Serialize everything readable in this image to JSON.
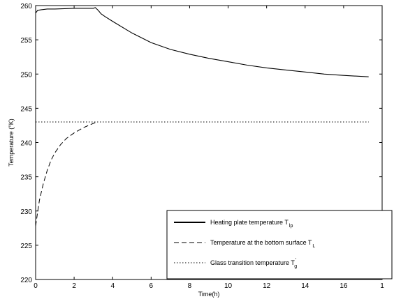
{
  "chart_data": {
    "type": "line",
    "title": "",
    "xlabel": "Time(h)",
    "ylabel": "Temperature (°K)",
    "xlim": [
      0,
      18
    ],
    "ylim": [
      220,
      260
    ],
    "xticks": [
      "0",
      "2",
      "4",
      "6",
      "8",
      "10",
      "12",
      "14",
      "16",
      "1"
    ],
    "yticks": [
      "220",
      "225",
      "230",
      "235",
      "240",
      "245",
      "250",
      "255",
      "260"
    ],
    "grid": false,
    "legend_position": "bottom-right",
    "series": [
      {
        "name": "Heating plate temperature T_lp",
        "legend_main": "Heating plate temperature T",
        "legend_sub": "lp",
        "legend_sup": "",
        "style": "solid",
        "color": "#000000",
        "x": [
          0,
          0.1,
          0.3,
          0.6,
          1.0,
          2.0,
          3.0,
          3.1,
          3.25,
          3.4,
          3.6,
          4.0,
          5.0,
          6.0,
          7.0,
          8.0,
          9.0,
          10.0,
          11.0,
          12.0,
          13.0,
          14.0,
          15.0,
          16.0,
          17.3
        ],
        "y": [
          258.9,
          259.3,
          259.4,
          259.5,
          259.5,
          259.6,
          259.6,
          259.7,
          259.3,
          258.8,
          258.4,
          257.7,
          256.0,
          254.6,
          253.6,
          252.9,
          252.3,
          251.8,
          251.3,
          250.9,
          250.6,
          250.3,
          250.0,
          249.8,
          249.6
        ]
      },
      {
        "name": "Temperature at the bottom surface T_L",
        "legend_main": "Temperature at the bottom surface T",
        "legend_sub": "L",
        "legend_sup": "",
        "style": "dashed",
        "color": "#000000",
        "x": [
          0,
          0.1,
          0.2,
          0.4,
          0.6,
          0.8,
          1.0,
          1.3,
          1.6,
          2.0,
          2.5,
          3.0,
          3.2
        ],
        "y": [
          227.8,
          229.8,
          231.6,
          234.0,
          235.9,
          237.4,
          238.5,
          239.7,
          240.6,
          241.4,
          242.2,
          242.8,
          243.0
        ]
      },
      {
        "name": "Glass transition temperature T'_g",
        "legend_main": "Glass transition temperature T",
        "legend_sub": "g",
        "legend_sup": "'",
        "style": "dotted",
        "color": "#000000",
        "x": [
          0,
          17.3
        ],
        "y": [
          243.0,
          243.0
        ]
      }
    ]
  }
}
